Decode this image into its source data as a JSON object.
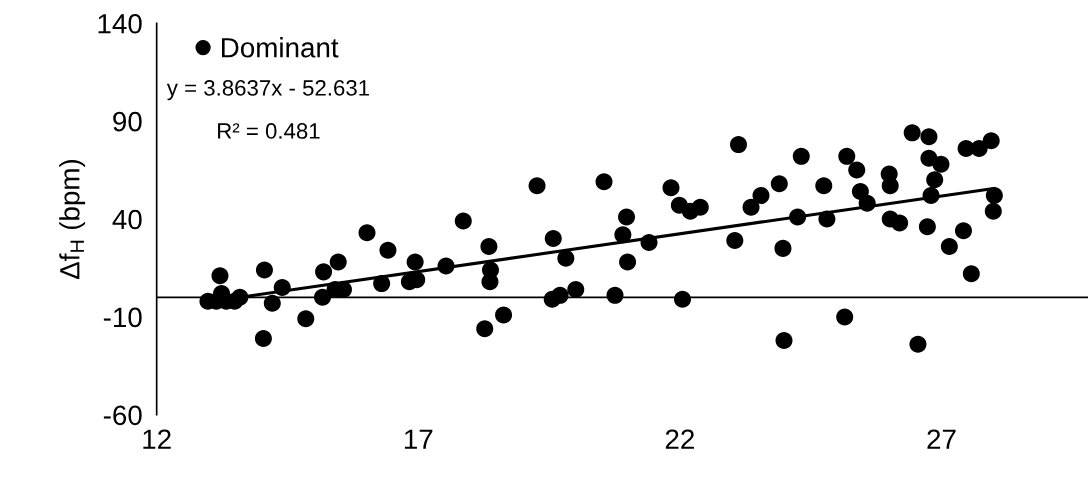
{
  "chart_data": {
    "type": "scatter",
    "ylabel": "Δf$_{H}$ (bpm)",
    "xlim": [
      12,
      29.8
    ],
    "xticks": [
      12,
      17,
      22,
      27
    ],
    "ylim": [
      -60,
      140
    ],
    "yticks": [
      -60,
      -10,
      40,
      90,
      140
    ],
    "grid": false,
    "legend": "top left",
    "annotations": [
      "y = 3.8637x - 52.631",
      "R² = 0.481"
    ],
    "ref_lines": [
      {
        "axis": "y",
        "value": 0,
        "color": "#000000"
      }
    ],
    "series": [
      {
        "name": "Dominant",
        "marker": "circle",
        "color": "#000000",
        "x": [
          12.98,
          13.21,
          13.24,
          13.14,
          13.33,
          13.49,
          13.59,
          14.06,
          14.4,
          14.21,
          14.04,
          14.85,
          15.19,
          15.47,
          15.17,
          15.41,
          15.57,
          16.02,
          16.42,
          16.94,
          16.83,
          16.97,
          16.3,
          17.53,
          17.86,
          18.35,
          18.38,
          18.37,
          18.63,
          18.27,
          19.27,
          19.58,
          19.82,
          19.56,
          19.71,
          20.01,
          20.55,
          20.76,
          20.98,
          20.91,
          21.0,
          21.41,
          21.83,
          21.99,
          22.2,
          22.39,
          22.05,
          23.05,
          23.36,
          23.12,
          23.55,
          23.9,
          24.32,
          24.25,
          24.81,
          24.75,
          25.19,
          25.38,
          25.45,
          25.58,
          26.0,
          26.02,
          26.02,
          26.2,
          26.44,
          26.76,
          26.76,
          26.99,
          26.87,
          26.8,
          26.73,
          27.47,
          27.72,
          27.95,
          28.01,
          27.99,
          27.42,
          27.15,
          27.57,
          23.97,
          25.15,
          23.99,
          26.55
        ],
        "values": [
          -2,
          11,
          2,
          -2,
          -2,
          -2,
          0,
          14,
          5,
          -3,
          -21,
          -11,
          13,
          18,
          0,
          4,
          4,
          33,
          24,
          18,
          8,
          9,
          7,
          16,
          39,
          26,
          14,
          8,
          -9,
          -16,
          57,
          30,
          20,
          -1,
          1,
          4,
          59,
          1,
          41,
          32,
          18,
          28,
          56,
          47,
          44,
          46,
          -1,
          29,
          46,
          78,
          52,
          58,
          72,
          41,
          40,
          57,
          72,
          65,
          54,
          48,
          63,
          57,
          40,
          38,
          84,
          82,
          71,
          68,
          60,
          52,
          36,
          76,
          76,
          80,
          52,
          44,
          34,
          26,
          12,
          25,
          -10,
          -22,
          -24
        ]
      },
      {
        "type": "line",
        "color": "#000000",
        "x": [
          13.7,
          28.0
        ],
        "values": [
          0.4,
          55.6
        ]
      }
    ]
  }
}
